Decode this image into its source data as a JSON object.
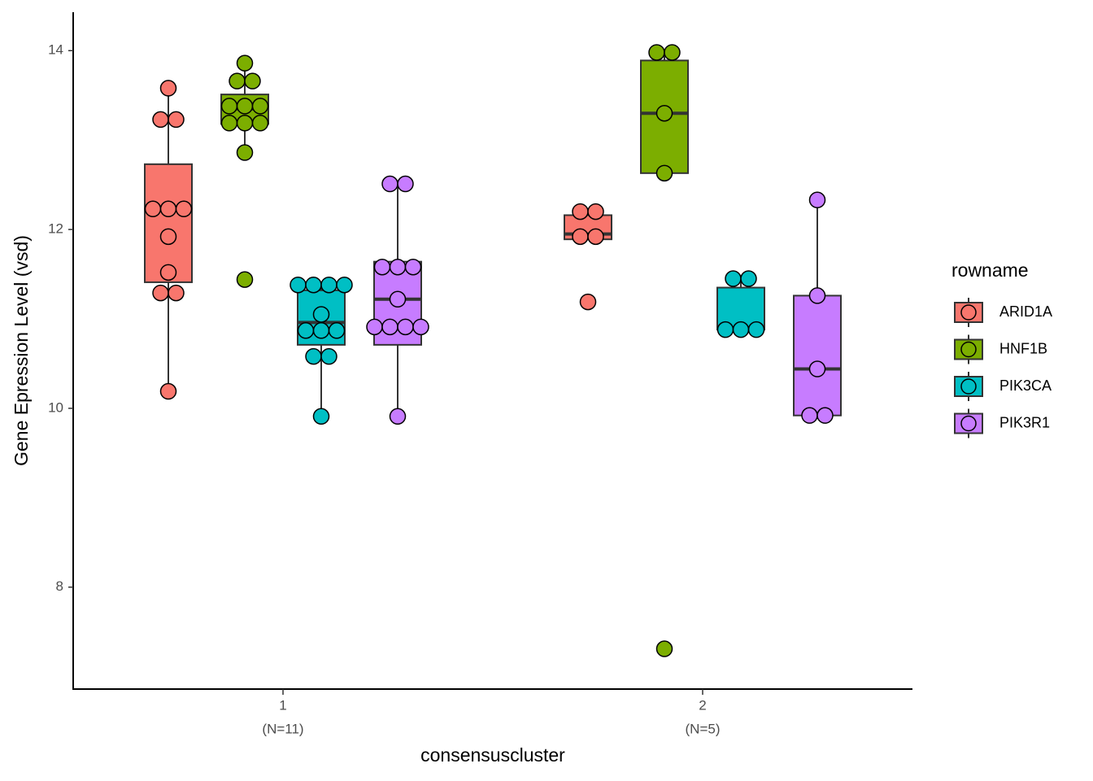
{
  "chart_data": {
    "type": "boxplot",
    "y_label": "Gene Epression Level (vsd)",
    "x_label": "consensuscluster",
    "legend_title": "rowname",
    "legend_position": "right",
    "categories": [
      "1",
      "2"
    ],
    "category_counts": [
      "(N=11)",
      "(N=5)"
    ],
    "ylim": [
      6.86,
      14.43
    ],
    "yticks": [
      8,
      10,
      12,
      14
    ],
    "grid": false,
    "series": [
      {
        "name": "ARID1A",
        "color": "#F8766D",
        "boxes": [
          {
            "q1": 11.41,
            "median": 12.23,
            "q3": 12.73,
            "whisker_low": 10.19,
            "whisker_high": 13.58,
            "points": [
              13.58,
              13.23,
              13.23,
              12.23,
              12.23,
              12.23,
              11.92,
              11.52,
              11.29,
              11.29,
              10.19
            ]
          },
          {
            "q1": 11.89,
            "median": 11.95,
            "q3": 12.16,
            "whisker_low": 11.89,
            "whisker_high": 12.2,
            "points": [
              12.2,
              12.2,
              11.92,
              11.92,
              11.19
            ]
          }
        ]
      },
      {
        "name": "HNF1B",
        "color": "#7CAE00",
        "boxes": [
          {
            "q1": 13.18,
            "median": 13.35,
            "q3": 13.51,
            "whisker_low": 12.86,
            "whisker_high": 13.86,
            "points": [
              13.86,
              13.66,
              13.66,
              13.38,
              13.38,
              13.38,
              13.19,
              13.19,
              13.19,
              12.86,
              11.44
            ]
          },
          {
            "q1": 12.63,
            "median": 13.3,
            "q3": 13.89,
            "whisker_low": 12.63,
            "whisker_high": 13.98,
            "points": [
              13.98,
              13.98,
              13.3,
              12.63,
              7.31
            ]
          }
        ]
      },
      {
        "name": "PIK3CA",
        "color": "#00BFC4",
        "boxes": [
          {
            "q1": 10.71,
            "median": 10.96,
            "q3": 11.32,
            "whisker_low": 9.91,
            "whisker_high": 11.38,
            "points": [
              11.38,
              11.38,
              11.38,
              11.38,
              11.05,
              10.87,
              10.87,
              10.87,
              10.58,
              10.58,
              9.91
            ]
          },
          {
            "q1": 10.88,
            "median": 10.88,
            "q3": 11.35,
            "whisker_low": 10.88,
            "whisker_high": 11.45,
            "points": [
              11.45,
              11.45,
              10.88,
              10.88,
              10.88
            ]
          }
        ]
      },
      {
        "name": "PIK3R1",
        "color": "#C77CFF",
        "boxes": [
          {
            "q1": 10.71,
            "median": 11.22,
            "q3": 11.64,
            "whisker_low": 9.91,
            "whisker_high": 12.51,
            "points": [
              12.51,
              12.51,
              11.58,
              11.58,
              11.58,
              11.22,
              10.91,
              10.91,
              10.91,
              10.91,
              9.91
            ]
          },
          {
            "q1": 9.92,
            "median": 10.44,
            "q3": 11.26,
            "whisker_low": 9.92,
            "whisker_high": 12.33,
            "points": [
              12.33,
              11.26,
              10.44,
              9.92,
              9.92
            ]
          }
        ]
      }
    ]
  }
}
